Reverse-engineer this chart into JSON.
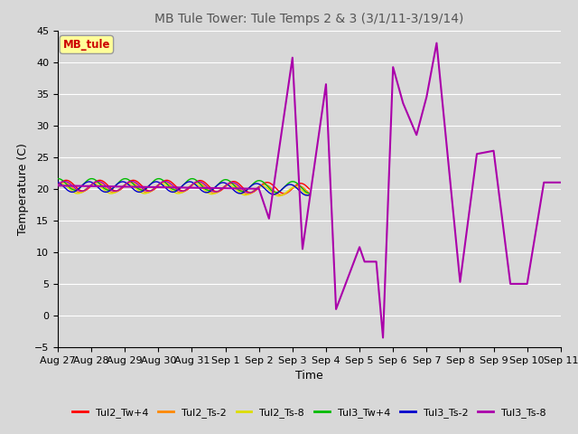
{
  "title": "MB Tule Tower: Tule Temps 2 & 3 (3/1/11-3/19/14)",
  "xlabel": "Time",
  "ylabel": "Temperature (C)",
  "ylim": [
    -5,
    45
  ],
  "background_color": "#d8d8d8",
  "plot_bg_color": "#d8d8d8",
  "annotation_text": "MB_tule",
  "annotation_color": "#cc0000",
  "annotation_bg": "#ffff99",
  "legend": [
    {
      "label": "Tul2_Tw+4",
      "color": "#ff0000"
    },
    {
      "label": "Tul2_Ts-2",
      "color": "#ff8800"
    },
    {
      "label": "Tul2_Ts-8",
      "color": "#dddd00"
    },
    {
      "label": "Tul3_Tw+4",
      "color": "#00bb00"
    },
    {
      "label": "Tul3_Ts-2",
      "color": "#0000cc"
    },
    {
      "label": "Tul3_Ts-8",
      "color": "#aa00aa"
    }
  ],
  "x_tick_labels": [
    "Aug 27",
    "Aug 28",
    "Aug 29",
    "Aug 30",
    "Aug 31",
    "Sep 1",
    "Sep 2",
    "Sep 3",
    "Sep 4",
    "Sep 5",
    "Sep 6",
    "Sep 7",
    "Sep 8",
    "Sep 9",
    "Sep 10",
    "Sep 11"
  ],
  "x_ticks": [
    0,
    1,
    2,
    3,
    4,
    5,
    6,
    7,
    8,
    9,
    10,
    11,
    12,
    13,
    14,
    15
  ],
  "yticks": [
    -5,
    0,
    5,
    10,
    15,
    20,
    25,
    30,
    35,
    40,
    45
  ],
  "purple_x": [
    0.0,
    6.0,
    6.3,
    7.0,
    7.3,
    8.0,
    8.3,
    9.0,
    9.15,
    9.5,
    9.7,
    10.0,
    10.3,
    10.7,
    11.0,
    11.3,
    12.0,
    12.5,
    13.0,
    13.5,
    14.0,
    14.5,
    15.0
  ],
  "purple_y": [
    20.5,
    20.0,
    15.3,
    40.7,
    10.5,
    36.5,
    1.0,
    10.8,
    8.5,
    8.5,
    -3.5,
    39.2,
    33.5,
    28.5,
    34.5,
    43.0,
    5.3,
    25.5,
    26.0,
    5.0,
    5.0,
    21.0,
    21.0
  ]
}
